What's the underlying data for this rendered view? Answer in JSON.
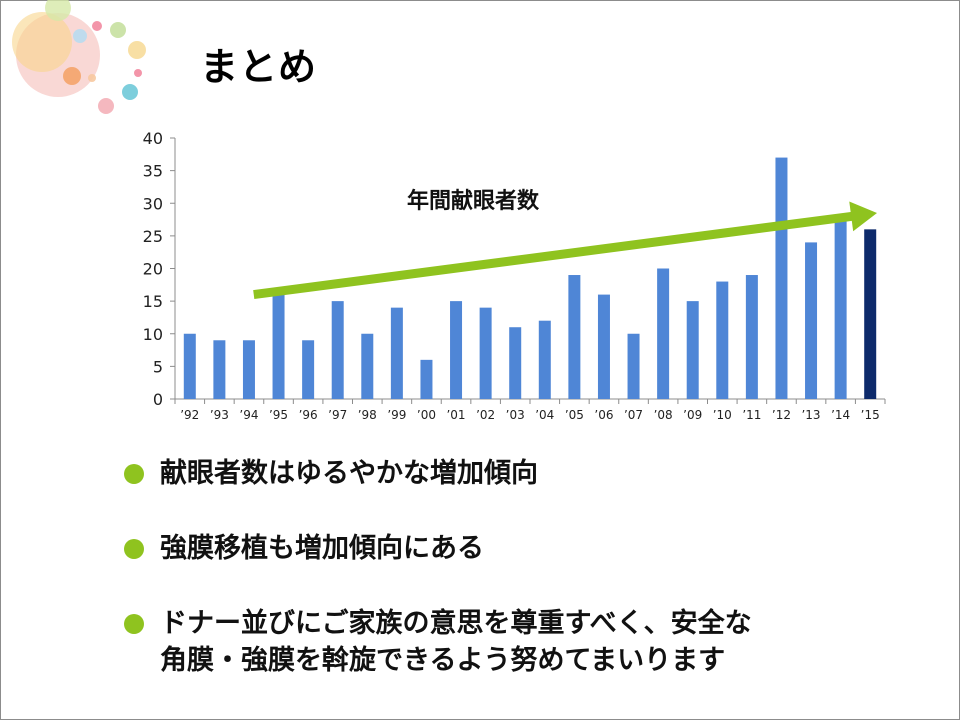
{
  "slide": {
    "title": "まとめ",
    "bullets": [
      "献眼者数はゆるやかな増加傾向",
      "強膜移植も増加傾向にある",
      "ドナー並びにご家族の意思を尊重すべく、安全な",
      "角膜・強膜を斡旋できるよう努めてまいります"
    ],
    "bullet_color": "#8fc31f"
  },
  "chart_data": {
    "type": "bar",
    "title": "年間献眼者数",
    "categories": [
      "'92",
      "'93",
      "'94",
      "'95",
      "'96",
      "'97",
      "'98",
      "'99",
      "'00",
      "'01",
      "'02",
      "'03",
      "'04",
      "'05",
      "'06",
      "'07",
      "'08",
      "'09",
      "'10",
      "'11",
      "'12",
      "'13",
      "'14",
      "'15"
    ],
    "values": [
      10,
      9,
      9,
      16,
      9,
      15,
      10,
      14,
      6,
      15,
      14,
      11,
      12,
      19,
      16,
      10,
      20,
      15,
      18,
      19,
      37,
      24,
      28,
      26
    ],
    "ylim": [
      0,
      40
    ],
    "yticks": [
      0,
      5,
      10,
      15,
      20,
      25,
      30,
      35,
      40
    ],
    "bar_color": "#4f86d6",
    "highlight_color": "#0d2a6b",
    "highlight_index": 23,
    "trend_arrow_color": "#8fc31f",
    "trend": {
      "from": {
        "category": "'95",
        "value": 16
      },
      "to": {
        "category": "'15",
        "value": 28.5
      }
    },
    "grid": false,
    "legend": "none"
  }
}
